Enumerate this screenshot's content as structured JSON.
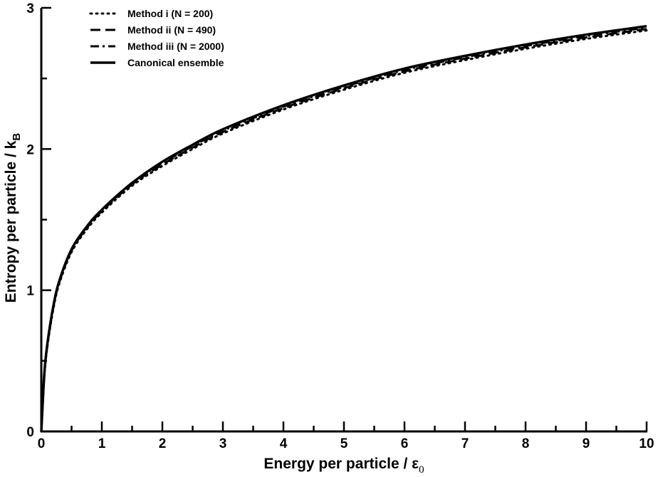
{
  "chart_data": {
    "type": "line",
    "xlabel": "Energy per particle / ε",
    "xlabel_subscript": "0",
    "ylabel": "Entropy per particle / k",
    "ylabel_subscript": "B",
    "xlim": [
      0,
      10
    ],
    "ylim": [
      0,
      3
    ],
    "x_ticks": [
      "0",
      "1",
      "2",
      "3",
      "4",
      "5",
      "6",
      "7",
      "8",
      "9",
      "10"
    ],
    "y_ticks": [
      "0",
      "1",
      "2",
      "3"
    ],
    "grid": false,
    "legend_position": "top-left",
    "x": [
      0,
      0.05,
      0.1,
      0.2,
      0.3,
      0.5,
      0.75,
      1,
      1.5,
      2,
      2.5,
      3,
      4,
      5,
      6,
      7,
      8,
      9,
      10
    ],
    "series": [
      {
        "name": "Method i (N = 200)",
        "style": "dotted",
        "values": [
          0,
          0.39,
          0.6,
          0.87,
          1.05,
          1.27,
          1.43,
          1.55,
          1.74,
          1.88,
          2.0,
          2.11,
          2.28,
          2.42,
          2.54,
          2.63,
          2.71,
          2.78,
          2.84
        ]
      },
      {
        "name": "Method ii (N = 490)",
        "style": "dashed",
        "values": [
          0,
          0.4,
          0.61,
          0.88,
          1.06,
          1.28,
          1.44,
          1.56,
          1.75,
          1.89,
          2.01,
          2.12,
          2.29,
          2.43,
          2.55,
          2.64,
          2.72,
          2.79,
          2.85
        ]
      },
      {
        "name": "Method iii (N = 2000)",
        "style": "dashdot",
        "values": [
          0,
          0.4,
          0.62,
          0.89,
          1.07,
          1.29,
          1.45,
          1.57,
          1.76,
          1.9,
          2.02,
          2.13,
          2.3,
          2.44,
          2.56,
          2.65,
          2.73,
          2.8,
          2.86
        ]
      },
      {
        "name": "Canonical ensemble",
        "style": "solid",
        "values": [
          0,
          0.41,
          0.62,
          0.89,
          1.07,
          1.29,
          1.45,
          1.57,
          1.76,
          1.91,
          2.03,
          2.14,
          2.31,
          2.45,
          2.57,
          2.66,
          2.74,
          2.81,
          2.87
        ]
      }
    ]
  }
}
